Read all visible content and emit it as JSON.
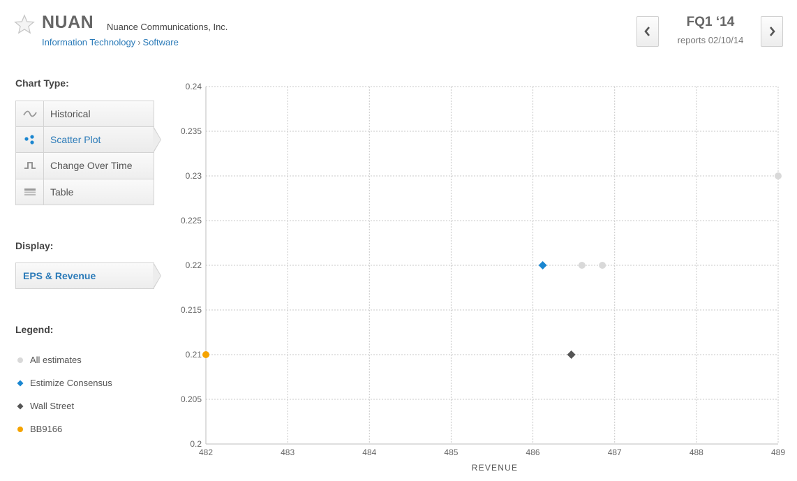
{
  "header": {
    "ticker": "NUAN",
    "company": "Nuance Communications, Inc.",
    "sector": "Information Technology",
    "separator": "›",
    "industry": "Software",
    "quarter": "FQ1 ‘14",
    "report_date": "reports 02/10/14",
    "prev_icon": "chevron-left-icon",
    "next_icon": "chevron-right-icon"
  },
  "sidebar": {
    "chart_type_heading": "Chart Type:",
    "chart_types": [
      {
        "label": "Historical",
        "icon": "wave-icon",
        "active": false
      },
      {
        "label": "Scatter Plot",
        "icon": "scatter-icon",
        "active": true
      },
      {
        "label": "Change Over Time",
        "icon": "step-icon",
        "active": false
      },
      {
        "label": "Table",
        "icon": "table-icon",
        "active": false
      }
    ],
    "display_heading": "Display:",
    "display_value": "EPS & Revenue",
    "legend_heading": "Legend:",
    "legend": [
      {
        "label": "All estimates",
        "marker": "circle",
        "color": "#d9d9d9"
      },
      {
        "label": "Estimize Consensus",
        "marker": "diamond",
        "color": "#1a86d0"
      },
      {
        "label": "Wall Street",
        "marker": "diamond",
        "color": "#555555"
      },
      {
        "label": "BB9166",
        "marker": "circle",
        "color": "#f5a300"
      }
    ]
  },
  "chart_data": {
    "type": "scatter",
    "xlabel": "REVENUE",
    "ylabel": "",
    "xlim": [
      482,
      489
    ],
    "ylim": [
      0.2,
      0.24
    ],
    "x_ticks": [
      482,
      483,
      484,
      485,
      486,
      487,
      488,
      489
    ],
    "y_ticks": [
      0.2,
      0.205,
      0.21,
      0.215,
      0.22,
      0.225,
      0.23,
      0.235,
      0.24
    ],
    "grid": true,
    "series": [
      {
        "name": "All estimates",
        "marker": "circle",
        "color": "#d9d9d9",
        "points": [
          [
            486.6,
            0.22
          ],
          [
            486.85,
            0.22
          ],
          [
            489.0,
            0.23
          ]
        ]
      },
      {
        "name": "Estimize Consensus",
        "marker": "diamond",
        "color": "#1a86d0",
        "points": [
          [
            486.12,
            0.22
          ]
        ]
      },
      {
        "name": "Wall Street",
        "marker": "diamond",
        "color": "#555555",
        "points": [
          [
            486.47,
            0.21
          ]
        ]
      },
      {
        "name": "BB9166",
        "marker": "circle",
        "color": "#f5a300",
        "points": [
          [
            482.0,
            0.21
          ]
        ]
      }
    ]
  }
}
